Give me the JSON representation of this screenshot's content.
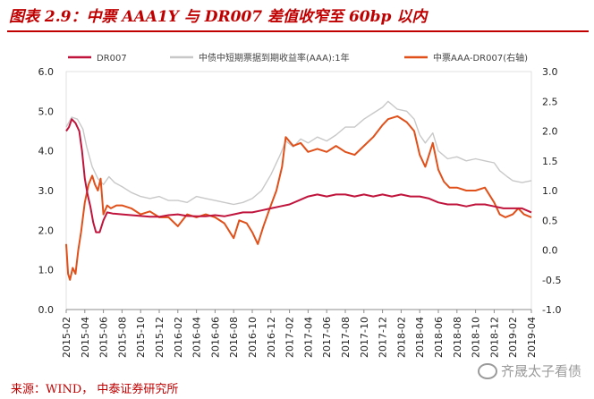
{
  "figure": {
    "title": "图表 2.9：中票 AAA1Y 与 DR007 差值收窄至 60bp 以内",
    "source": "来源：WIND， 中泰证券研究所",
    "watermark": "齐晟太子看债"
  },
  "chart_data": {
    "type": "line",
    "title": "",
    "x_labels": [
      "2015-02",
      "2015-04",
      "2015-06",
      "2015-08",
      "2015-10",
      "2015-12",
      "2016-02",
      "2016-04",
      "2016-06",
      "2016-08",
      "2016-10",
      "2016-12",
      "2017-02",
      "2017-04",
      "2017-06",
      "2017-08",
      "2017-10",
      "2017-12",
      "2018-02",
      "2018-04",
      "2018-06",
      "2018-08",
      "2018-10",
      "2018-12",
      "2019-02",
      "2019-04"
    ],
    "y_left": {
      "min": 0,
      "max": 6,
      "ticks": [
        "0.0",
        "1.0",
        "2.0",
        "3.0",
        "4.0",
        "5.0",
        "6.0"
      ]
    },
    "y_right": {
      "min": -1,
      "max": 3,
      "ticks": [
        "-1.0",
        "-0.5",
        "0.0",
        "0.5",
        "1.0",
        "1.5",
        "2.0",
        "2.5",
        "3.0"
      ]
    },
    "series": [
      {
        "name": "DR007",
        "axis": "left",
        "color": "#c0143c",
        "points": [
          [
            0,
            4.5
          ],
          [
            0.15,
            4.6
          ],
          [
            0.3,
            4.8
          ],
          [
            0.5,
            4.7
          ],
          [
            0.7,
            4.5
          ],
          [
            0.85,
            4.0
          ],
          [
            1.0,
            3.3
          ],
          [
            1.15,
            2.9
          ],
          [
            1.3,
            2.6
          ],
          [
            1.45,
            2.2
          ],
          [
            1.6,
            1.95
          ],
          [
            1.8,
            1.95
          ],
          [
            2.0,
            2.25
          ],
          [
            2.2,
            2.45
          ],
          [
            2.5,
            2.42
          ],
          [
            3.0,
            2.4
          ],
          [
            3.5,
            2.38
          ],
          [
            4.0,
            2.36
          ],
          [
            4.5,
            2.34
          ],
          [
            5.0,
            2.34
          ],
          [
            5.5,
            2.38
          ],
          [
            6.0,
            2.4
          ],
          [
            6.5,
            2.36
          ],
          [
            7.0,
            2.35
          ],
          [
            7.5,
            2.35
          ],
          [
            8.0,
            2.38
          ],
          [
            8.5,
            2.35
          ],
          [
            9.0,
            2.4
          ],
          [
            9.5,
            2.45
          ],
          [
            10.0,
            2.45
          ],
          [
            10.5,
            2.5
          ],
          [
            11.0,
            2.55
          ],
          [
            11.5,
            2.6
          ],
          [
            12.0,
            2.65
          ],
          [
            12.5,
            2.75
          ],
          [
            13.0,
            2.85
          ],
          [
            13.5,
            2.9
          ],
          [
            14.0,
            2.85
          ],
          [
            14.5,
            2.9
          ],
          [
            15.0,
            2.9
          ],
          [
            15.5,
            2.85
          ],
          [
            16.0,
            2.9
          ],
          [
            16.5,
            2.85
          ],
          [
            17.0,
            2.9
          ],
          [
            17.5,
            2.85
          ],
          [
            18.0,
            2.9
          ],
          [
            18.5,
            2.85
          ],
          [
            19.0,
            2.85
          ],
          [
            19.5,
            2.8
          ],
          [
            20.0,
            2.7
          ],
          [
            20.5,
            2.65
          ],
          [
            21.0,
            2.65
          ],
          [
            21.5,
            2.6
          ],
          [
            22.0,
            2.65
          ],
          [
            22.5,
            2.65
          ],
          [
            23.0,
            2.6
          ],
          [
            23.5,
            2.55
          ],
          [
            24.0,
            2.55
          ],
          [
            24.5,
            2.55
          ],
          [
            25.0,
            2.45
          ]
        ]
      },
      {
        "name": "中债中短期票据到期收益率(AAA):1年",
        "axis": "left",
        "color": "#c8c8c8",
        "points": [
          [
            0,
            4.6
          ],
          [
            0.3,
            4.85
          ],
          [
            0.6,
            4.8
          ],
          [
            0.9,
            4.55
          ],
          [
            1.1,
            4.1
          ],
          [
            1.4,
            3.6
          ],
          [
            1.7,
            3.3
          ],
          [
            2.0,
            3.15
          ],
          [
            2.3,
            3.35
          ],
          [
            2.6,
            3.2
          ],
          [
            3.0,
            3.1
          ],
          [
            3.5,
            2.95
          ],
          [
            4.0,
            2.85
          ],
          [
            4.5,
            2.8
          ],
          [
            5.0,
            2.85
          ],
          [
            5.5,
            2.75
          ],
          [
            6.0,
            2.75
          ],
          [
            6.5,
            2.7
          ],
          [
            7.0,
            2.85
          ],
          [
            7.5,
            2.8
          ],
          [
            8.0,
            2.75
          ],
          [
            8.5,
            2.7
          ],
          [
            9.0,
            2.65
          ],
          [
            9.5,
            2.7
          ],
          [
            10.0,
            2.8
          ],
          [
            10.5,
            3.0
          ],
          [
            11.0,
            3.4
          ],
          [
            11.5,
            3.9
          ],
          [
            11.8,
            4.25
          ],
          [
            12.2,
            4.1
          ],
          [
            12.6,
            4.3
          ],
          [
            13.0,
            4.2
          ],
          [
            13.5,
            4.35
          ],
          [
            14.0,
            4.25
          ],
          [
            14.5,
            4.4
          ],
          [
            15.0,
            4.6
          ],
          [
            15.5,
            4.6
          ],
          [
            16.0,
            4.8
          ],
          [
            16.5,
            4.95
          ],
          [
            17.0,
            5.1
          ],
          [
            17.3,
            5.25
          ],
          [
            17.8,
            5.05
          ],
          [
            18.3,
            5.0
          ],
          [
            18.7,
            4.8
          ],
          [
            19.0,
            4.4
          ],
          [
            19.3,
            4.2
          ],
          [
            19.7,
            4.45
          ],
          [
            20.0,
            4.0
          ],
          [
            20.5,
            3.8
          ],
          [
            21.0,
            3.85
          ],
          [
            21.5,
            3.75
          ],
          [
            22.0,
            3.8
          ],
          [
            22.5,
            3.75
          ],
          [
            23.0,
            3.7
          ],
          [
            23.3,
            3.5
          ],
          [
            23.7,
            3.35
          ],
          [
            24.0,
            3.25
          ],
          [
            24.5,
            3.2
          ],
          [
            25.0,
            3.25
          ]
        ]
      },
      {
        "name": "中票AAA-DR007(右轴)",
        "axis": "right",
        "color": "#e0501a",
        "points": [
          [
            0,
            0.1
          ],
          [
            0.1,
            -0.4
          ],
          [
            0.2,
            -0.5
          ],
          [
            0.35,
            -0.3
          ],
          [
            0.5,
            -0.4
          ],
          [
            0.65,
            0.0
          ],
          [
            0.8,
            0.3
          ],
          [
            1.0,
            0.8
          ],
          [
            1.2,
            1.1
          ],
          [
            1.4,
            1.25
          ],
          [
            1.55,
            1.1
          ],
          [
            1.7,
            1.0
          ],
          [
            1.85,
            1.2
          ],
          [
            2.0,
            0.6
          ],
          [
            2.2,
            0.75
          ],
          [
            2.4,
            0.7
          ],
          [
            2.7,
            0.75
          ],
          [
            3.0,
            0.75
          ],
          [
            3.5,
            0.7
          ],
          [
            4.0,
            0.6
          ],
          [
            4.5,
            0.65
          ],
          [
            5.0,
            0.55
          ],
          [
            5.5,
            0.55
          ],
          [
            6.0,
            0.4
          ],
          [
            6.5,
            0.6
          ],
          [
            7.0,
            0.55
          ],
          [
            7.5,
            0.6
          ],
          [
            8.0,
            0.55
          ],
          [
            8.5,
            0.45
          ],
          [
            9.0,
            0.2
          ],
          [
            9.3,
            0.5
          ],
          [
            9.7,
            0.45
          ],
          [
            10.0,
            0.3
          ],
          [
            10.3,
            0.1
          ],
          [
            10.6,
            0.4
          ],
          [
            11.0,
            0.75
          ],
          [
            11.3,
            1.0
          ],
          [
            11.6,
            1.4
          ],
          [
            11.8,
            1.9
          ],
          [
            12.2,
            1.75
          ],
          [
            12.6,
            1.8
          ],
          [
            13.0,
            1.65
          ],
          [
            13.5,
            1.7
          ],
          [
            14.0,
            1.65
          ],
          [
            14.5,
            1.75
          ],
          [
            15.0,
            1.65
          ],
          [
            15.5,
            1.6
          ],
          [
            16.0,
            1.75
          ],
          [
            16.5,
            1.9
          ],
          [
            17.0,
            2.1
          ],
          [
            17.3,
            2.2
          ],
          [
            17.8,
            2.25
          ],
          [
            18.3,
            2.15
          ],
          [
            18.7,
            2.0
          ],
          [
            19.0,
            1.6
          ],
          [
            19.3,
            1.4
          ],
          [
            19.7,
            1.8
          ],
          [
            20.0,
            1.35
          ],
          [
            20.3,
            1.15
          ],
          [
            20.6,
            1.05
          ],
          [
            21.0,
            1.05
          ],
          [
            21.5,
            1.0
          ],
          [
            22.0,
            1.0
          ],
          [
            22.5,
            1.05
          ],
          [
            23.0,
            0.8
          ],
          [
            23.3,
            0.6
          ],
          [
            23.6,
            0.55
          ],
          [
            24.0,
            0.6
          ],
          [
            24.3,
            0.7
          ],
          [
            24.6,
            0.6
          ],
          [
            25.0,
            0.55
          ]
        ]
      }
    ]
  }
}
